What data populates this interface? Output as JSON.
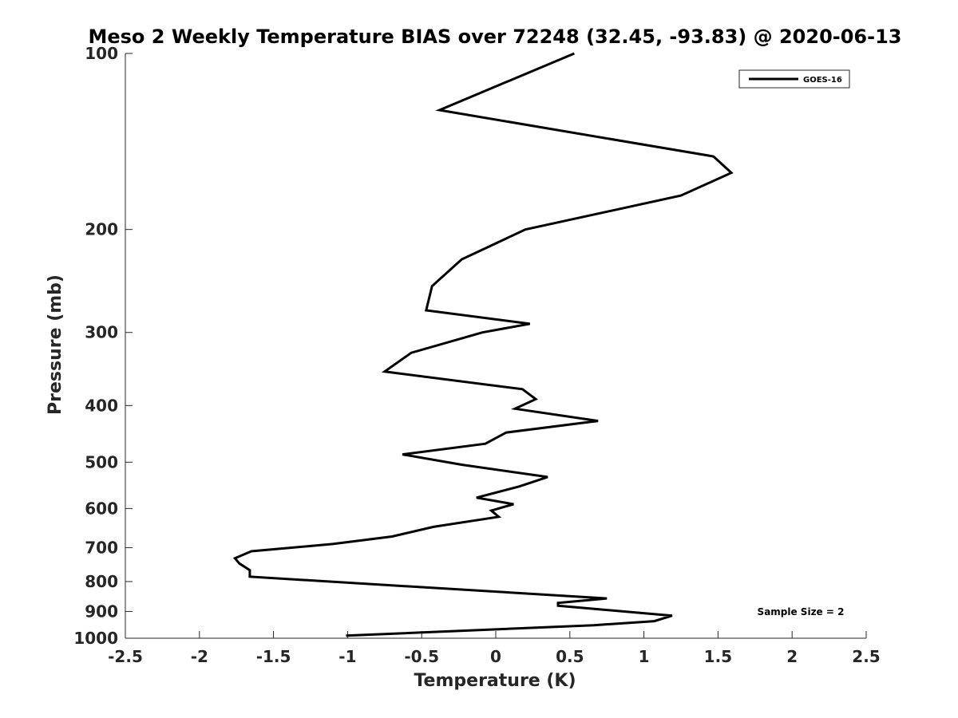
{
  "chart_data": {
    "type": "line",
    "title": "Meso 2 Weekly Temperature BIAS over 72248 (32.45, -93.83) @ 2020-06-13",
    "xlabel": "Temperature (K)",
    "ylabel": "Pressure (mb)",
    "xlim": [
      -2.5,
      2.5
    ],
    "ylim": [
      100,
      1000
    ],
    "y_scale": "log",
    "y_reversed": true,
    "grid": false,
    "x_ticks": [
      -2.5,
      -2,
      -1.5,
      -1,
      -0.5,
      0,
      0.5,
      1,
      1.5,
      2,
      2.5
    ],
    "x_tick_labels": [
      "-2.5",
      "-2",
      "-1.5",
      "-1",
      "-0.5",
      "0",
      "0.5",
      "1",
      "1.5",
      "2",
      "2.5"
    ],
    "y_ticks": [
      100,
      200,
      300,
      400,
      500,
      600,
      700,
      800,
      900,
      1000
    ],
    "y_tick_labels": [
      "100",
      "200",
      "300",
      "400",
      "500",
      "600",
      "700",
      "800",
      "900",
      "1000"
    ],
    "legend_position": "top-right",
    "annotation": "Sample Size = 2",
    "series": [
      {
        "name": "GOES-16",
        "color": "#000000",
        "points": [
          {
            "temp": 0.53,
            "p": 100
          },
          {
            "temp": -0.38,
            "p": 125
          },
          {
            "temp": 1.47,
            "p": 150
          },
          {
            "temp": 1.59,
            "p": 160
          },
          {
            "temp": 1.25,
            "p": 175
          },
          {
            "temp": 0.2,
            "p": 200
          },
          {
            "temp": -0.23,
            "p": 225
          },
          {
            "temp": -0.43,
            "p": 250
          },
          {
            "temp": -0.47,
            "p": 275
          },
          {
            "temp": 0.23,
            "p": 290
          },
          {
            "temp": -0.09,
            "p": 300
          },
          {
            "temp": -0.57,
            "p": 325
          },
          {
            "temp": -0.75,
            "p": 350
          },
          {
            "temp": 0.18,
            "p": 375
          },
          {
            "temp": 0.27,
            "p": 390
          },
          {
            "temp": 0.13,
            "p": 405
          },
          {
            "temp": 0.69,
            "p": 425
          },
          {
            "temp": 0.07,
            "p": 445
          },
          {
            "temp": -0.07,
            "p": 465
          },
          {
            "temp": -0.63,
            "p": 485
          },
          {
            "temp": -0.23,
            "p": 505
          },
          {
            "temp": 0.35,
            "p": 530
          },
          {
            "temp": 0.16,
            "p": 550
          },
          {
            "temp": -0.13,
            "p": 575
          },
          {
            "temp": 0.12,
            "p": 590
          },
          {
            "temp": -0.03,
            "p": 605
          },
          {
            "temp": 0.02,
            "p": 620
          },
          {
            "temp": -0.42,
            "p": 645
          },
          {
            "temp": -0.7,
            "p": 670
          },
          {
            "temp": -1.1,
            "p": 690
          },
          {
            "temp": -1.65,
            "p": 710
          },
          {
            "temp": -1.76,
            "p": 730
          },
          {
            "temp": -1.73,
            "p": 745
          },
          {
            "temp": -1.66,
            "p": 765
          },
          {
            "temp": -1.66,
            "p": 785
          },
          {
            "temp": 0.75,
            "p": 855
          },
          {
            "temp": 0.42,
            "p": 870
          },
          {
            "temp": 0.42,
            "p": 880
          },
          {
            "temp": 1.19,
            "p": 915
          },
          {
            "temp": 1.07,
            "p": 935
          },
          {
            "temp": 0.66,
            "p": 950
          },
          {
            "temp": -1.01,
            "p": 990
          }
        ]
      }
    ]
  }
}
